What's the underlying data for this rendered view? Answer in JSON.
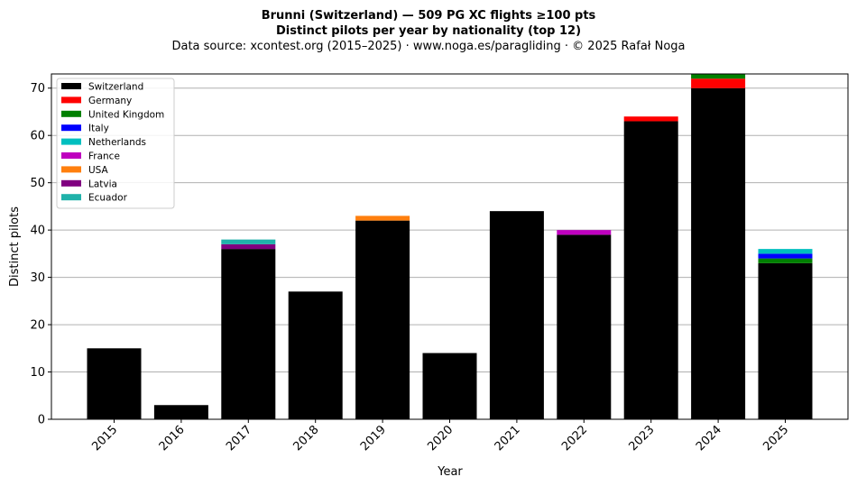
{
  "chart_data": {
    "type": "bar",
    "stacked": true,
    "title": "Brunni (Switzerland)  —  509 PG XC flights ≥100 pts",
    "subtitle": "Distinct pilots per year by nationality (top 12)",
    "source": "Data source: xcontest.org (2015–2025)  ·  www.noga.es/paragliding  ·  © 2025 Rafał Noga",
    "xlabel": "Year",
    "ylabel": "Distinct pilots",
    "ylim": [
      0,
      73
    ],
    "yticks": [
      0,
      10,
      20,
      30,
      40,
      50,
      60,
      70
    ],
    "grid": "horizontal",
    "legend_position": "top-left",
    "categories": [
      "2015",
      "2016",
      "2017",
      "2018",
      "2019",
      "2020",
      "2021",
      "2022",
      "2023",
      "2024",
      "2025"
    ],
    "series": [
      {
        "name": "Switzerland",
        "color": "#000000",
        "values": [
          15,
          3,
          36,
          27,
          42,
          14,
          44,
          39,
          63,
          70,
          33
        ]
      },
      {
        "name": "Germany",
        "color": "#ff0000",
        "values": [
          0,
          0,
          0,
          0,
          0,
          0,
          0,
          0,
          1,
          2,
          0
        ]
      },
      {
        "name": "United Kingdom",
        "color": "#008000",
        "values": [
          0,
          0,
          0,
          0,
          0,
          0,
          0,
          0,
          0,
          1,
          1
        ]
      },
      {
        "name": "Italy",
        "color": "#0000ff",
        "values": [
          0,
          0,
          0,
          0,
          0,
          0,
          0,
          0,
          0,
          0,
          1
        ]
      },
      {
        "name": "Netherlands",
        "color": "#00bfbf",
        "values": [
          0,
          0,
          0,
          0,
          0,
          0,
          0,
          0,
          0,
          0,
          1
        ]
      },
      {
        "name": "France",
        "color": "#bf00bf",
        "values": [
          0,
          0,
          0,
          0,
          0,
          0,
          0,
          1,
          0,
          0,
          0
        ]
      },
      {
        "name": "USA",
        "color": "#ff7f0e",
        "values": [
          0,
          0,
          0,
          0,
          1,
          0,
          0,
          0,
          0,
          0,
          0
        ]
      },
      {
        "name": "Latvia",
        "color": "#800080",
        "values": [
          0,
          0,
          1,
          0,
          0,
          0,
          0,
          0,
          0,
          0,
          0
        ]
      },
      {
        "name": "Ecuador",
        "color": "#20b2aa",
        "values": [
          0,
          0,
          1,
          0,
          0,
          0,
          0,
          0,
          0,
          0,
          0
        ]
      }
    ]
  }
}
